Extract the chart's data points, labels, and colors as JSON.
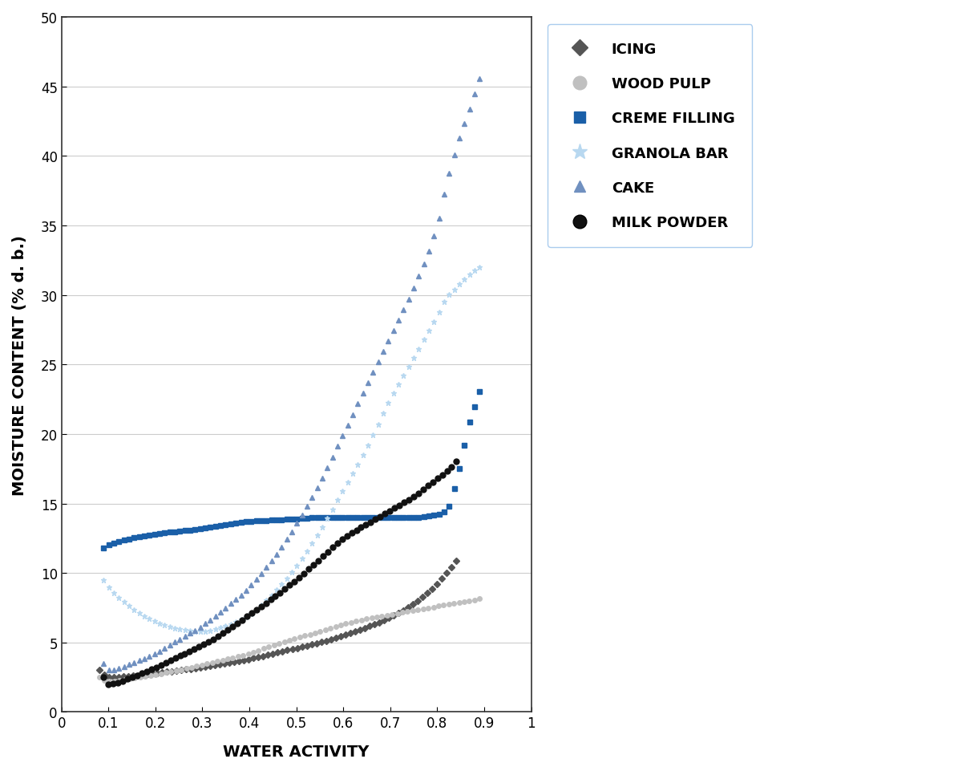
{
  "title": "",
  "xlabel": "WATER ACTIVITY",
  "ylabel": "MOISTURE CONTENT (% d. b.)",
  "xlim": [
    0,
    1.0
  ],
  "ylim": [
    0,
    50
  ],
  "xticks": [
    0,
    0.1,
    0.2,
    0.3,
    0.4,
    0.5,
    0.6,
    0.7,
    0.8,
    0.9,
    1.0
  ],
  "yticks": [
    0,
    5,
    10,
    15,
    20,
    25,
    30,
    35,
    40,
    45,
    50
  ],
  "series": {
    "ICING": {
      "color": "#555555",
      "marker": "D",
      "markersize": 4,
      "aw": [
        0.08,
        0.1,
        0.15,
        0.2,
        0.25,
        0.3,
        0.35,
        0.4,
        0.45,
        0.5,
        0.55,
        0.6,
        0.65,
        0.7,
        0.75,
        0.8,
        0.82,
        0.84,
        0.85
      ],
      "mc": [
        3.0,
        2.5,
        2.6,
        2.8,
        3.0,
        3.2,
        3.5,
        3.8,
        4.2,
        4.6,
        5.0,
        5.5,
        6.1,
        6.8,
        7.8,
        9.2,
        10.0,
        10.8,
        11.5
      ]
    },
    "WOOD PULP": {
      "color": "#c0c0c0",
      "marker": "o",
      "markersize": 4,
      "aw": [
        0.08,
        0.1,
        0.15,
        0.2,
        0.25,
        0.3,
        0.35,
        0.4,
        0.45,
        0.5,
        0.55,
        0.6,
        0.65,
        0.7,
        0.75,
        0.8,
        0.85,
        0.9
      ],
      "mc": [
        2.5,
        2.2,
        2.4,
        2.7,
        3.0,
        3.4,
        3.8,
        4.2,
        4.8,
        5.3,
        5.8,
        6.3,
        6.7,
        7.0,
        7.3,
        7.6,
        7.9,
        8.2
      ]
    },
    "CREME FILLING": {
      "color": "#1a5fa8",
      "marker": "s",
      "markersize": 4,
      "aw": [
        0.09,
        0.1,
        0.15,
        0.2,
        0.25,
        0.3,
        0.35,
        0.4,
        0.45,
        0.5,
        0.55,
        0.6,
        0.65,
        0.7,
        0.75,
        0.78,
        0.8,
        0.82,
        0.84,
        0.86,
        0.87,
        0.88,
        0.89,
        0.9
      ],
      "mc": [
        11.8,
        12.0,
        12.5,
        12.8,
        13.0,
        13.2,
        13.5,
        13.7,
        13.8,
        13.9,
        14.0,
        14.0,
        14.0,
        14.0,
        14.0,
        14.1,
        14.2,
        14.5,
        16.5,
        19.5,
        21.0,
        22.0,
        23.0,
        23.5
      ]
    },
    "GRANOLA BAR": {
      "color": "#b8d8f0",
      "marker": "*",
      "markersize": 5,
      "aw": [
        0.09,
        0.1,
        0.15,
        0.2,
        0.25,
        0.3,
        0.35,
        0.4,
        0.45,
        0.5,
        0.55,
        0.6,
        0.65,
        0.7,
        0.75,
        0.8,
        0.82,
        0.84,
        0.86,
        0.87,
        0.88,
        0.89,
        0.9
      ],
      "mc": [
        9.5,
        9.0,
        7.5,
        6.5,
        6.0,
        5.8,
        6.2,
        7.0,
        8.5,
        10.5,
        13.0,
        16.0,
        19.0,
        22.5,
        25.5,
        28.5,
        29.8,
        30.5,
        31.2,
        31.5,
        31.8,
        32.0,
        32.0
      ]
    },
    "CAKE": {
      "color": "#7090c0",
      "marker": "^",
      "markersize": 4,
      "aw": [
        0.09,
        0.1,
        0.15,
        0.2,
        0.25,
        0.3,
        0.35,
        0.4,
        0.45,
        0.5,
        0.55,
        0.6,
        0.65,
        0.7,
        0.75,
        0.8,
        0.82,
        0.84,
        0.86,
        0.87,
        0.88,
        0.89,
        0.9
      ],
      "mc": [
        3.5,
        3.0,
        3.5,
        4.2,
        5.2,
        6.2,
        7.5,
        9.0,
        11.0,
        13.5,
        16.5,
        20.0,
        23.5,
        27.0,
        30.5,
        35.0,
        38.0,
        40.5,
        42.5,
        43.5,
        44.5,
        45.5,
        46.8
      ]
    },
    "MILK POWDER": {
      "color": "#111111",
      "marker": "o",
      "markersize": 5,
      "aw": [
        0.09,
        0.1,
        0.15,
        0.2,
        0.25,
        0.3,
        0.35,
        0.4,
        0.45,
        0.5,
        0.55,
        0.6,
        0.65,
        0.7,
        0.75,
        0.8,
        0.82,
        0.84,
        0.85
      ],
      "mc": [
        2.5,
        2.0,
        2.5,
        3.2,
        4.0,
        4.8,
        5.8,
        7.0,
        8.2,
        9.5,
        11.0,
        12.5,
        13.5,
        14.5,
        15.5,
        16.8,
        17.3,
        18.0,
        18.5
      ]
    }
  },
  "legend_entries": [
    "ICING",
    "WOOD PULP",
    "CREME FILLING",
    "GRANOLA BAR",
    "CAKE",
    "MILK POWDER"
  ],
  "legend_colors": [
    "#555555",
    "#c0c0c0",
    "#1a5fa8",
    "#b8d8f0",
    "#7090c0",
    "#111111"
  ],
  "legend_markers": [
    "D",
    "o",
    "s",
    "*",
    "^",
    "o"
  ],
  "legend_markersizes": [
    10,
    12,
    10,
    14,
    10,
    12
  ],
  "background_color": "#ffffff",
  "plot_bg_color": "#ffffff",
  "grid_color": "#cccccc"
}
